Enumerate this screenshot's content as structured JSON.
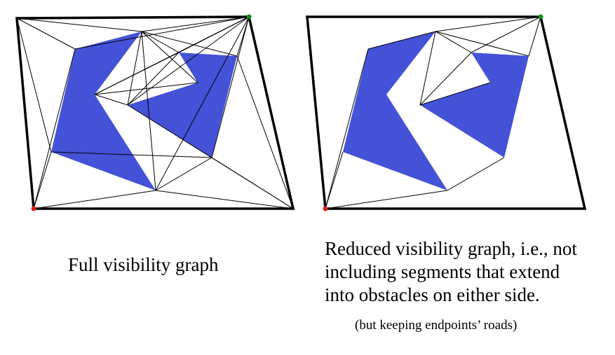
{
  "colors": {
    "obstacle": "#4352d6",
    "border": "#000000",
    "edge": "#000000",
    "start": "#e02020",
    "goal": "#0a8f10"
  },
  "captions": {
    "left": "Full visibility graph",
    "right_lines": [
      "Reduced visibility graph, i.e., not",
      "including segments that extend",
      "into obstacles on either side."
    ],
    "note": "(but keeping endpoints’ roads)"
  }
}
